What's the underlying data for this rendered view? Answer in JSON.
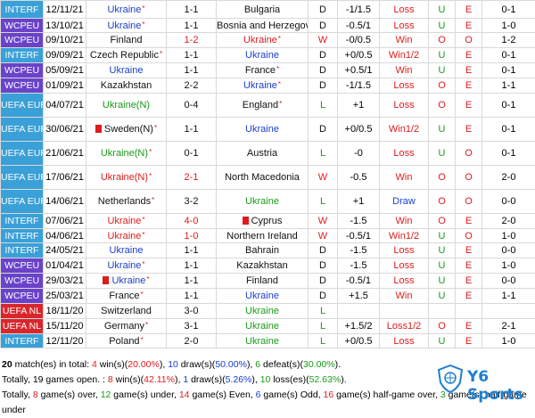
{
  "rows": [
    {
      "league": "INTERF",
      "lc": "#3aa0d8",
      "date": "12/11/21",
      "home": "Ukraine",
      "hc": "blue",
      "hstar": "*",
      "hflag": false,
      "score": "1-1",
      "sc": "black",
      "away": "Bulgaria",
      "ac": "black",
      "astar": "",
      "aflag": false,
      "res": "D",
      "rc": "black",
      "hcap": "-1/1.5",
      "hres": "Loss",
      "hrc": "red",
      "ou": "U",
      "oc": "green",
      "oe": "E",
      "ec": "red",
      "ht": "0-1",
      "h": 20
    },
    {
      "league": "WCPEU",
      "lc": "#6a43c9",
      "date": "13/10/21",
      "home": "Ukraine",
      "hc": "blue",
      "hstar": "*",
      "hflag": false,
      "score": "1-1",
      "sc": "black",
      "away": "Bosnia and Herzegovina",
      "ac": "black",
      "astar": "",
      "aflag": false,
      "res": "D",
      "rc": "black",
      "hcap": "-0.5/1",
      "hres": "Loss",
      "hrc": "red",
      "ou": "U",
      "oc": "green",
      "oe": "E",
      "ec": "red",
      "ht": "1-0",
      "h": 16
    },
    {
      "league": "WCPEU",
      "lc": "#6a43c9",
      "date": "09/10/21",
      "home": "Finland",
      "hc": "black",
      "hstar": "",
      "hflag": false,
      "score": "1-2",
      "sc": "red",
      "away": "Ukraine",
      "ac": "red",
      "astar": "*",
      "aflag": false,
      "res": "W",
      "rc": "red",
      "hcap": "-0/0.5",
      "hres": "Win",
      "hrc": "red",
      "ou": "O",
      "oc": "red",
      "oe": "O",
      "ec": "red",
      "ht": "1-2",
      "h": 17
    },
    {
      "league": "INTERF",
      "lc": "#3aa0d8",
      "date": "09/09/21",
      "home": "Czech Republic",
      "hc": "black",
      "hstar": "*",
      "hflag": false,
      "score": "1-1",
      "sc": "black",
      "away": "Ukraine",
      "ac": "blue",
      "astar": "",
      "aflag": false,
      "res": "D",
      "rc": "black",
      "hcap": "+0/0.5",
      "hres": "Win1/2",
      "hrc": "red",
      "ou": "U",
      "oc": "green",
      "oe": "E",
      "ec": "red",
      "ht": "0-1",
      "h": 17
    },
    {
      "league": "WCPEU",
      "lc": "#6a43c9",
      "date": "05/09/21",
      "home": "Ukraine",
      "hc": "blue",
      "hstar": "",
      "hflag": false,
      "score": "1-1",
      "sc": "black",
      "away": "France",
      "ac": "black",
      "astar": "*",
      "aflag": false,
      "res": "D",
      "rc": "black",
      "hcap": "+0.5/1",
      "hres": "Win",
      "hrc": "red",
      "ou": "U",
      "oc": "green",
      "oe": "E",
      "ec": "red",
      "ht": "0-1",
      "h": 17
    },
    {
      "league": "WCPEU",
      "lc": "#6a43c9",
      "date": "01/09/21",
      "home": "Kazakhstan",
      "hc": "black",
      "hstar": "",
      "hflag": false,
      "score": "2-2",
      "sc": "black",
      "away": "Ukraine",
      "ac": "blue",
      "astar": "*",
      "aflag": false,
      "res": "D",
      "rc": "black",
      "hcap": "-1/1.5",
      "hres": "Loss",
      "hrc": "red",
      "ou": "O",
      "oc": "red",
      "oe": "E",
      "ec": "red",
      "ht": "1-1",
      "h": 17
    },
    {
      "league": "UEFA EURO",
      "lc": "#3aa0d8",
      "date": "04/07/21",
      "home": "Ukraine(N)",
      "hc": "green",
      "hstar": "",
      "hflag": false,
      "score": "0-4",
      "sc": "black",
      "away": "England",
      "ac": "black",
      "astar": "*",
      "aflag": false,
      "res": "L",
      "rc": "green",
      "hcap": "+1",
      "hres": "Loss",
      "hrc": "red",
      "ou": "O",
      "oc": "red",
      "oe": "E",
      "ec": "red",
      "ht": "0-1",
      "h": 27
    },
    {
      "league": "UEFA EURO",
      "lc": "#3aa0d8",
      "date": "30/06/21",
      "home": "Sweden(N)",
      "hc": "black",
      "hstar": "*",
      "hflag": true,
      "score": "1-1",
      "sc": "black",
      "away": "Ukraine",
      "ac": "blue",
      "astar": "",
      "aflag": false,
      "res": "D",
      "rc": "black",
      "hcap": "+0/0.5",
      "hres": "Win1/2",
      "hrc": "red",
      "ou": "U",
      "oc": "green",
      "oe": "E",
      "ec": "red",
      "ht": "0-1",
      "h": 27
    },
    {
      "league": "UEFA EURO",
      "lc": "#3aa0d8",
      "date": "21/06/21",
      "home": "Ukraine(N)",
      "hc": "green",
      "hstar": "*",
      "hflag": false,
      "score": "0-1",
      "sc": "black",
      "away": "Austria",
      "ac": "black",
      "astar": "",
      "aflag": false,
      "res": "L",
      "rc": "green",
      "hcap": "-0",
      "hres": "Loss",
      "hrc": "red",
      "ou": "U",
      "oc": "green",
      "oe": "O",
      "ec": "red",
      "ht": "0-1",
      "h": 27
    },
    {
      "league": "UEFA EURO",
      "lc": "#3aa0d8",
      "date": "17/06/21",
      "home": "Ukraine(N)",
      "hc": "red",
      "hstar": "*",
      "hflag": false,
      "score": "2-1",
      "sc": "red",
      "away": "North Macedonia",
      "ac": "black",
      "astar": "",
      "aflag": false,
      "res": "W",
      "rc": "red",
      "hcap": "-0.5",
      "hres": "Win",
      "hrc": "red",
      "ou": "O",
      "oc": "red",
      "oe": "O",
      "ec": "red",
      "ht": "2-0",
      "h": 27
    },
    {
      "league": "UEFA EURO",
      "lc": "#3aa0d8",
      "date": "14/06/21",
      "home": "Netherlands",
      "hc": "black",
      "hstar": "*",
      "hflag": false,
      "score": "3-2",
      "sc": "black",
      "away": "Ukraine",
      "ac": "green",
      "astar": "",
      "aflag": false,
      "res": "L",
      "rc": "green",
      "hcap": "+1",
      "hres": "Draw",
      "hrc": "blue",
      "ou": "O",
      "oc": "red",
      "oe": "O",
      "ec": "red",
      "ht": "0-0",
      "h": 27
    },
    {
      "league": "INTERF",
      "lc": "#3aa0d8",
      "date": "07/06/21",
      "home": "Ukraine",
      "hc": "red",
      "hstar": "*",
      "hflag": false,
      "score": "4-0",
      "sc": "red",
      "away": "Cyprus",
      "ac": "black",
      "astar": "",
      "aflag": true,
      "res": "W",
      "rc": "red",
      "hcap": "-1.5",
      "hres": "Win",
      "hrc": "red",
      "ou": "O",
      "oc": "red",
      "oe": "E",
      "ec": "red",
      "ht": "2-0",
      "h": 17
    },
    {
      "league": "INTERF",
      "lc": "#3aa0d8",
      "date": "04/06/21",
      "home": "Ukraine",
      "hc": "red",
      "hstar": "*",
      "hflag": false,
      "score": "1-0",
      "sc": "red",
      "away": "Northern Ireland",
      "ac": "black",
      "astar": "",
      "aflag": false,
      "res": "W",
      "rc": "red",
      "hcap": "-0.5/1",
      "hres": "Win1/2",
      "hrc": "red",
      "ou": "U",
      "oc": "green",
      "oe": "O",
      "ec": "red",
      "ht": "1-0",
      "h": 16
    },
    {
      "league": "INTERF",
      "lc": "#3aa0d8",
      "date": "24/05/21",
      "home": "Ukraine",
      "hc": "blue",
      "hstar": "",
      "hflag": false,
      "score": "1-1",
      "sc": "black",
      "away": "Bahrain",
      "ac": "black",
      "astar": "",
      "aflag": false,
      "res": "D",
      "rc": "black",
      "hcap": "-1.5",
      "hres": "Loss",
      "hrc": "red",
      "ou": "U",
      "oc": "green",
      "oe": "E",
      "ec": "red",
      "ht": "0-0",
      "h": 17
    },
    {
      "league": "WCPEU",
      "lc": "#6a43c9",
      "date": "01/04/21",
      "home": "Ukraine",
      "hc": "blue",
      "hstar": "*",
      "hflag": false,
      "score": "1-1",
      "sc": "black",
      "away": "Kazakhstan",
      "ac": "black",
      "astar": "",
      "aflag": false,
      "res": "D",
      "rc": "black",
      "hcap": "-1.5",
      "hres": "Loss",
      "hrc": "red",
      "ou": "U",
      "oc": "green",
      "oe": "E",
      "ec": "red",
      "ht": "1-0",
      "h": 17
    },
    {
      "league": "WCPEU",
      "lc": "#6a43c9",
      "date": "29/03/21",
      "home": "Ukraine",
      "hc": "blue",
      "hstar": "*",
      "hflag": true,
      "score": "1-1",
      "sc": "black",
      "away": "Finland",
      "ac": "black",
      "astar": "",
      "aflag": false,
      "res": "D",
      "rc": "black",
      "hcap": "-0.5/1",
      "hres": "Loss",
      "hrc": "red",
      "ou": "U",
      "oc": "green",
      "oe": "E",
      "ec": "red",
      "ht": "0-0",
      "h": 17
    },
    {
      "league": "WCPEU",
      "lc": "#6a43c9",
      "date": "25/03/21",
      "home": "France",
      "hc": "black",
      "hstar": "*",
      "hflag": false,
      "score": "1-1",
      "sc": "black",
      "away": "Ukraine",
      "ac": "blue",
      "astar": "",
      "aflag": false,
      "res": "D",
      "rc": "black",
      "hcap": "+1.5",
      "hres": "Win",
      "hrc": "red",
      "ou": "U",
      "oc": "green",
      "oe": "E",
      "ec": "red",
      "ht": "1-1",
      "h": 17
    },
    {
      "league": "UEFA NL",
      "lc": "#d9262c",
      "date": "18/11/20",
      "home": "Switzerland",
      "hc": "black",
      "hstar": "",
      "hflag": false,
      "score": "3-0",
      "sc": "black",
      "away": "Ukraine",
      "ac": "green",
      "astar": "",
      "aflag": false,
      "res": "L",
      "rc": "green",
      "hcap": "",
      "hres": "",
      "hrc": "red",
      "ou": "",
      "oc": "green",
      "oe": "",
      "ec": "red",
      "ht": "",
      "h": 17
    },
    {
      "league": "UEFA NL",
      "lc": "#d9262c",
      "date": "15/11/20",
      "home": "Germany",
      "hc": "black",
      "hstar": "*",
      "hflag": false,
      "score": "3-1",
      "sc": "black",
      "away": "Ukraine",
      "ac": "green",
      "astar": "",
      "aflag": false,
      "res": "L",
      "rc": "green",
      "hcap": "+1.5/2",
      "hres": "Loss1/2",
      "hrc": "red",
      "ou": "O",
      "oc": "red",
      "oe": "E",
      "ec": "red",
      "ht": "2-1",
      "h": 17
    },
    {
      "league": "INTERF",
      "lc": "#3aa0d8",
      "date": "12/11/20",
      "home": "Poland",
      "hc": "black",
      "hstar": "*",
      "hflag": false,
      "score": "2-0",
      "sc": "black",
      "away": "Ukraine",
      "ac": "green",
      "astar": "",
      "aflag": false,
      "res": "L",
      "rc": "green",
      "hcap": "+0/0.5",
      "hres": "Loss",
      "hrc": "red",
      "ou": "U",
      "oc": "green",
      "oe": "E",
      "ec": "red",
      "ht": "1-0",
      "h": 16
    }
  ],
  "footer": {
    "line1": {
      "p1": "20",
      "p2": " match(es) in total: ",
      "p3": "4",
      "p4": " win(s)(",
      "p5": "20.00%",
      "p6": "), ",
      "p7": "10",
      "p8": " draw(s)(",
      "p9": "50.00%",
      "p10": "), ",
      "p11": "6",
      "p12": " defeat(s)(",
      "p13": "30.00%",
      "p14": ")."
    },
    "line2": {
      "p1": "Totally, 19 games open. : ",
      "p2": "8",
      "p3": " win(s)(",
      "p4": "42.11%",
      "p5": "), ",
      "p6": "1",
      "p7": " draw(s)(",
      "p8": "5.26%",
      "p9": "), ",
      "p10": "10",
      "p11": " loss(es)(",
      "p12": "52.63%",
      "p13": ")."
    },
    "line3": {
      "p1": "Totally, ",
      "p2": "8",
      "p3": " game(s) over, ",
      "p4": "12",
      "p5": " game(s) under, ",
      "p6": "14",
      "p7": " game(s) Even, ",
      "p8": "6",
      "p9": " game(s) Odd, ",
      "p10": "16",
      "p11": " game(s) half-game over, ",
      "p12": "3",
      "p13": " game(s) half-game under"
    }
  },
  "logo": {
    "text": "Y6 Sports"
  }
}
